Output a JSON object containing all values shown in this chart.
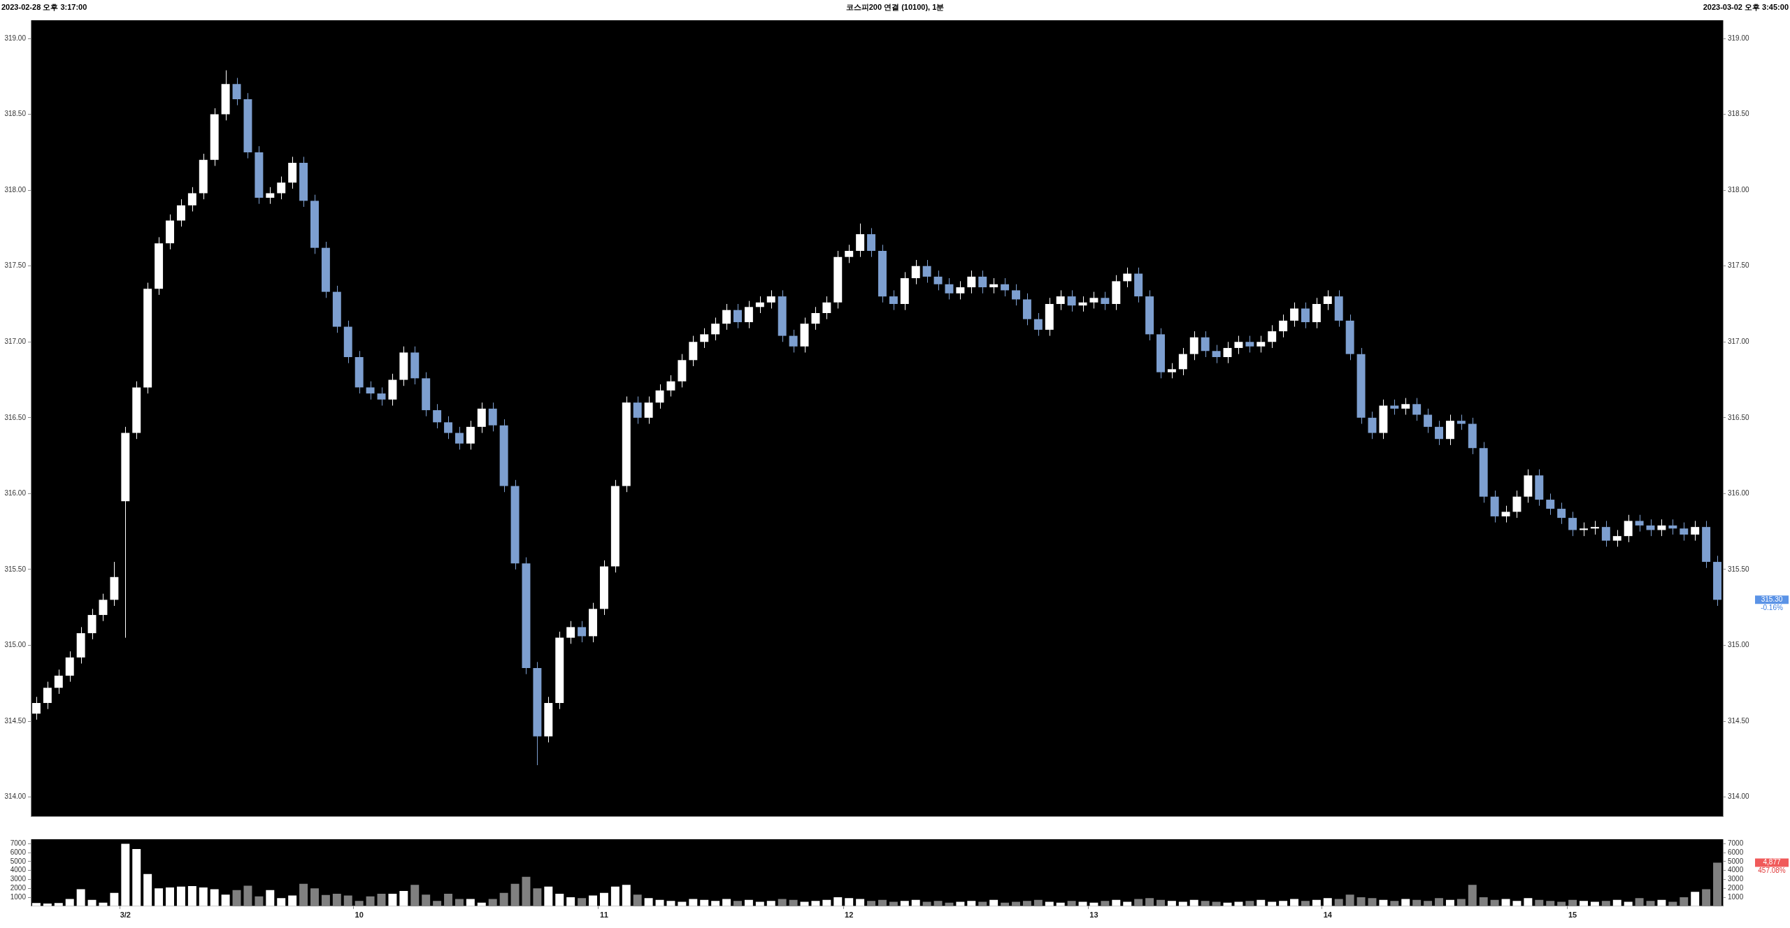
{
  "chart_data": [
    {
      "type": "candlestick",
      "title": "코스피200 연결 (10100), 1분",
      "annotations": [
        "2023-02-28 오후 3:17:00",
        "2023-03-02 오후 3:45:00",
        "315.30",
        "-0.16%"
      ],
      "ohlc": [
        [
          314.55,
          314.66,
          314.51,
          314.62
        ],
        [
          314.62,
          314.76,
          314.58,
          314.72
        ],
        [
          314.72,
          314.84,
          314.68,
          314.8
        ],
        [
          314.8,
          314.96,
          314.76,
          314.92
        ],
        [
          314.92,
          315.12,
          314.88,
          315.08
        ],
        [
          315.08,
          315.24,
          315.04,
          315.2
        ],
        [
          315.2,
          315.34,
          315.16,
          315.3
        ],
        [
          315.3,
          315.55,
          315.26,
          315.45
        ],
        [
          315.95,
          316.44,
          315.05,
          316.4
        ],
        [
          316.4,
          316.74,
          316.36,
          316.7
        ],
        [
          316.7,
          317.39,
          316.66,
          317.35
        ],
        [
          317.35,
          317.69,
          317.31,
          317.65
        ],
        [
          317.65,
          317.84,
          317.61,
          317.8
        ],
        [
          317.8,
          317.94,
          317.76,
          317.9
        ],
        [
          317.9,
          318.02,
          317.86,
          317.98
        ],
        [
          317.98,
          318.24,
          317.94,
          318.2
        ],
        [
          318.2,
          318.54,
          318.16,
          318.5
        ],
        [
          318.5,
          318.79,
          318.46,
          318.7
        ],
        [
          318.7,
          318.74,
          318.56,
          318.6
        ],
        [
          318.6,
          318.64,
          318.21,
          318.25
        ],
        [
          318.25,
          318.29,
          317.91,
          317.95
        ],
        [
          317.95,
          318.02,
          317.91,
          317.98
        ],
        [
          317.98,
          318.09,
          317.94,
          318.05
        ],
        [
          318.05,
          318.22,
          318.01,
          318.18
        ],
        [
          318.18,
          318.22,
          317.89,
          317.93
        ],
        [
          317.93,
          317.97,
          317.58,
          317.62
        ],
        [
          317.62,
          317.66,
          317.29,
          317.33
        ],
        [
          317.33,
          317.37,
          317.06,
          317.1
        ],
        [
          317.1,
          317.14,
          316.86,
          316.9
        ],
        [
          316.9,
          316.94,
          316.66,
          316.7
        ],
        [
          316.7,
          316.74,
          316.62,
          316.66
        ],
        [
          316.66,
          316.7,
          316.58,
          316.62
        ],
        [
          316.62,
          316.79,
          316.58,
          316.75
        ],
        [
          316.75,
          316.97,
          316.71,
          316.93
        ],
        [
          316.93,
          316.97,
          316.72,
          316.76
        ],
        [
          316.76,
          316.8,
          316.51,
          316.55
        ],
        [
          316.55,
          316.59,
          316.43,
          316.47
        ],
        [
          316.47,
          316.51,
          316.36,
          316.4
        ],
        [
          316.4,
          316.44,
          316.29,
          316.33
        ],
        [
          316.33,
          316.48,
          316.29,
          316.44
        ],
        [
          316.44,
          316.6,
          316.4,
          316.56
        ],
        [
          316.56,
          316.6,
          316.41,
          316.45
        ],
        [
          316.45,
          316.49,
          316.01,
          316.05
        ],
        [
          316.05,
          316.09,
          315.5,
          315.54
        ],
        [
          315.54,
          315.58,
          314.81,
          314.85
        ],
        [
          314.85,
          314.89,
          314.21,
          314.4
        ],
        [
          314.4,
          314.66,
          314.36,
          314.62
        ],
        [
          314.62,
          315.09,
          314.58,
          315.05
        ],
        [
          315.05,
          315.16,
          315.01,
          315.12
        ],
        [
          315.12,
          315.16,
          315.02,
          315.06
        ],
        [
          315.06,
          315.28,
          315.02,
          315.24
        ],
        [
          315.24,
          315.56,
          315.2,
          315.52
        ],
        [
          315.52,
          316.09,
          315.48,
          316.05
        ],
        [
          316.05,
          316.64,
          316.01,
          316.6
        ],
        [
          316.6,
          316.64,
          316.46,
          316.5
        ],
        [
          316.5,
          316.64,
          316.46,
          316.6
        ],
        [
          316.6,
          316.72,
          316.56,
          316.68
        ],
        [
          316.68,
          316.78,
          316.64,
          316.74
        ],
        [
          316.74,
          316.92,
          316.7,
          316.88
        ],
        [
          316.88,
          317.04,
          316.84,
          317.0
        ],
        [
          317.0,
          317.09,
          316.96,
          317.05
        ],
        [
          317.05,
          317.16,
          317.01,
          317.12
        ],
        [
          317.12,
          317.25,
          317.08,
          317.21
        ],
        [
          317.21,
          317.25,
          317.09,
          317.13
        ],
        [
          317.13,
          317.27,
          317.09,
          317.23
        ],
        [
          317.23,
          317.3,
          317.19,
          317.26
        ],
        [
          317.26,
          317.34,
          317.22,
          317.3
        ],
        [
          317.3,
          317.34,
          317.0,
          317.04
        ],
        [
          317.04,
          317.08,
          316.93,
          316.97
        ],
        [
          316.97,
          317.16,
          316.93,
          317.12
        ],
        [
          317.12,
          317.23,
          317.08,
          317.19
        ],
        [
          317.19,
          317.3,
          317.15,
          317.26
        ],
        [
          317.26,
          317.6,
          317.22,
          317.56
        ],
        [
          317.56,
          317.64,
          317.52,
          317.6
        ],
        [
          317.6,
          317.78,
          317.56,
          317.71
        ],
        [
          317.71,
          317.75,
          317.56,
          317.6
        ],
        [
          317.6,
          317.64,
          317.26,
          317.3
        ],
        [
          317.3,
          317.34,
          317.21,
          317.25
        ],
        [
          317.25,
          317.46,
          317.21,
          317.42
        ],
        [
          317.42,
          317.54,
          317.38,
          317.5
        ],
        [
          317.5,
          317.54,
          317.39,
          317.43
        ],
        [
          317.43,
          317.47,
          317.34,
          317.38
        ],
        [
          317.38,
          317.42,
          317.28,
          317.32
        ],
        [
          317.32,
          317.4,
          317.28,
          317.36
        ],
        [
          317.36,
          317.47,
          317.32,
          317.43
        ],
        [
          317.43,
          317.47,
          317.32,
          317.36
        ],
        [
          317.36,
          317.42,
          317.32,
          317.38
        ],
        [
          317.38,
          317.42,
          317.3,
          317.34
        ],
        [
          317.34,
          317.38,
          317.24,
          317.28
        ],
        [
          317.28,
          317.32,
          317.11,
          317.15
        ],
        [
          317.15,
          317.19,
          317.04,
          317.08
        ],
        [
          317.08,
          317.29,
          317.04,
          317.25
        ],
        [
          317.25,
          317.34,
          317.21,
          317.3
        ],
        [
          317.3,
          317.34,
          317.2,
          317.24
        ],
        [
          317.24,
          317.3,
          317.2,
          317.26
        ],
        [
          317.26,
          317.33,
          317.22,
          317.29
        ],
        [
          317.29,
          317.33,
          317.21,
          317.25
        ],
        [
          317.25,
          317.44,
          317.21,
          317.4
        ],
        [
          317.4,
          317.49,
          317.36,
          317.45
        ],
        [
          317.45,
          317.49,
          317.26,
          317.3
        ],
        [
          317.3,
          317.34,
          317.01,
          317.05
        ],
        [
          317.05,
          317.09,
          316.76,
          316.8
        ],
        [
          316.8,
          316.86,
          316.76,
          316.82
        ],
        [
          316.82,
          316.96,
          316.78,
          316.92
        ],
        [
          316.92,
          317.07,
          316.88,
          317.03
        ],
        [
          317.03,
          317.07,
          316.9,
          316.94
        ],
        [
          316.94,
          316.98,
          316.86,
          316.9
        ],
        [
          316.9,
          317.0,
          316.86,
          316.96
        ],
        [
          316.96,
          317.04,
          316.92,
          317.0
        ],
        [
          317.0,
          317.04,
          316.93,
          316.97
        ],
        [
          316.97,
          317.04,
          316.93,
          317.0
        ],
        [
          317.0,
          317.11,
          316.96,
          317.07
        ],
        [
          317.07,
          317.18,
          317.03,
          317.14
        ],
        [
          317.14,
          317.26,
          317.1,
          317.22
        ],
        [
          317.22,
          317.26,
          317.09,
          317.13
        ],
        [
          317.13,
          317.29,
          317.09,
          317.25
        ],
        [
          317.25,
          317.34,
          317.21,
          317.3
        ],
        [
          317.3,
          317.34,
          317.1,
          317.14
        ],
        [
          317.14,
          317.18,
          316.88,
          316.92
        ],
        [
          316.92,
          316.96,
          316.46,
          316.5
        ],
        [
          316.5,
          316.54,
          316.36,
          316.4
        ],
        [
          316.4,
          316.62,
          316.36,
          316.58
        ],
        [
          316.58,
          316.62,
          316.52,
          316.56
        ],
        [
          316.56,
          316.63,
          316.52,
          316.59
        ],
        [
          316.59,
          316.63,
          316.48,
          316.52
        ],
        [
          316.52,
          316.56,
          316.4,
          316.44
        ],
        [
          316.44,
          316.48,
          316.32,
          316.36
        ],
        [
          316.36,
          316.52,
          316.32,
          316.48
        ],
        [
          316.48,
          316.52,
          316.42,
          316.46
        ],
        [
          316.46,
          316.5,
          316.26,
          316.3
        ],
        [
          316.3,
          316.34,
          315.94,
          315.98
        ],
        [
          315.98,
          316.02,
          315.81,
          315.85
        ],
        [
          315.85,
          315.92,
          315.81,
          315.88
        ],
        [
          315.88,
          316.02,
          315.84,
          315.98
        ],
        [
          315.98,
          316.16,
          315.94,
          316.12
        ],
        [
          316.12,
          316.16,
          315.92,
          315.96
        ],
        [
          315.96,
          316.0,
          315.86,
          315.9
        ],
        [
          315.9,
          315.94,
          315.8,
          315.84
        ],
        [
          315.84,
          315.88,
          315.72,
          315.76
        ],
        [
          315.76,
          315.81,
          315.72,
          315.77
        ],
        [
          315.77,
          315.82,
          315.73,
          315.78
        ],
        [
          315.78,
          315.82,
          315.65,
          315.69
        ],
        [
          315.69,
          315.76,
          315.65,
          315.72
        ],
        [
          315.72,
          315.86,
          315.68,
          315.82
        ],
        [
          315.82,
          315.86,
          315.75,
          315.79
        ],
        [
          315.79,
          315.83,
          315.72,
          315.76
        ],
        [
          315.76,
          315.83,
          315.72,
          315.79
        ],
        [
          315.79,
          315.83,
          315.73,
          315.77
        ],
        [
          315.77,
          315.81,
          315.69,
          315.73
        ],
        [
          315.73,
          315.82,
          315.69,
          315.78
        ],
        [
          315.78,
          315.82,
          315.51,
          315.55
        ],
        [
          315.55,
          315.59,
          315.26,
          315.3
        ]
      ],
      "ylim": [
        313.87,
        319.12
      ],
      "yticks": [
        {
          "value": 314,
          "label": "314.00"
        },
        {
          "value": 314.5,
          "label": "314.50"
        },
        {
          "value": 315,
          "label": "315.00"
        },
        {
          "value": 315.5,
          "label": "315.50"
        },
        {
          "value": 316,
          "label": "316.00"
        },
        {
          "value": 316.5,
          "label": "316.50"
        },
        {
          "value": 317,
          "label": "317.00"
        },
        {
          "value": 317.5,
          "label": "317.50"
        },
        {
          "value": 318,
          "label": "318.00"
        },
        {
          "value": 318.5,
          "label": "318.50"
        },
        {
          "value": 319,
          "label": "319.00"
        }
      ],
      "y2lim": [
        313.87,
        319.12
      ],
      "y2ticks": [
        {
          "value": 314,
          "label": "314.00"
        },
        {
          "value": 314.5,
          "label": "314.50"
        },
        {
          "value": 315,
          "label": "315.00"
        },
        {
          "value": 315.5,
          "label": "315.50"
        },
        {
          "value": 316,
          "label": "316.00"
        },
        {
          "value": 316.5,
          "label": "316.50"
        },
        {
          "value": 317,
          "label": "317.00"
        },
        {
          "value": 317.5,
          "label": "317.50"
        },
        {
          "value": 318,
          "label": "318.00"
        },
        {
          "value": 318.5,
          "label": "318.50"
        },
        {
          "value": 319,
          "label": "319.00"
        }
      ],
      "grid": false,
      "legend": false
    },
    {
      "type": "bar",
      "annotations": [
        "4,877",
        "457.08%"
      ],
      "categories": [
        null,
        null,
        null,
        null,
        null,
        null,
        null,
        null,
        "3/2",
        null,
        null,
        null,
        null,
        null,
        null,
        null,
        null,
        null,
        null,
        null,
        null,
        null,
        null,
        null,
        null,
        null,
        null,
        null,
        null,
        "10",
        null,
        null,
        null,
        null,
        null,
        null,
        null,
        null,
        null,
        null,
        null,
        null,
        null,
        null,
        null,
        null,
        null,
        null,
        null,
        null,
        null,
        "11",
        null,
        null,
        null,
        null,
        null,
        null,
        null,
        null,
        null,
        null,
        null,
        null,
        null,
        null,
        null,
        null,
        null,
        null,
        null,
        null,
        null,
        "12",
        null,
        null,
        null,
        null,
        null,
        null,
        null,
        null,
        null,
        null,
        null,
        null,
        null,
        null,
        null,
        null,
        null,
        null,
        null,
        null,
        null,
        "13",
        null,
        null,
        null,
        null,
        null,
        null,
        null,
        null,
        null,
        null,
        null,
        null,
        null,
        null,
        null,
        null,
        null,
        null,
        null,
        null,
        "14",
        null,
        null,
        null,
        null,
        null,
        null,
        null,
        null,
        null,
        null,
        null,
        null,
        null,
        null,
        null,
        null,
        null,
        null,
        null,
        null,
        null,
        "15",
        null,
        null,
        null,
        null,
        null,
        null,
        null,
        null,
        null,
        null,
        null,
        null,
        null
      ],
      "values": [
        350,
        300,
        350,
        800,
        1900,
        700,
        400,
        1500,
        7000,
        6400,
        3600,
        2000,
        2100,
        2200,
        2250,
        2100,
        1900,
        1300,
        1800,
        2300,
        1100,
        1800,
        900,
        1200,
        2500,
        2000,
        1250,
        1400,
        1200,
        600,
        1100,
        1400,
        1400,
        1700,
        2400,
        1300,
        600,
        1400,
        800,
        800,
        400,
        800,
        1500,
        2500,
        3300,
        2000,
        2200,
        1400,
        1000,
        900,
        1200,
        1500,
        2200,
        2400,
        1300,
        900,
        700,
        600,
        500,
        800,
        700,
        600,
        800,
        600,
        700,
        500,
        600,
        800,
        700,
        500,
        600,
        700,
        1000,
        900,
        800,
        600,
        700,
        500,
        600,
        700,
        500,
        600,
        400,
        500,
        600,
        500,
        700,
        400,
        500,
        600,
        700,
        500,
        400,
        600,
        500,
        400,
        600,
        700,
        500,
        800,
        900,
        700,
        600,
        500,
        700,
        600,
        500,
        400,
        500,
        600,
        700,
        500,
        600,
        800,
        600,
        700,
        900,
        800,
        1300,
        1000,
        900,
        700,
        600,
        800,
        700,
        600,
        900,
        700,
        800,
        2400,
        1000,
        700,
        800,
        600,
        900,
        700,
        600,
        500,
        700,
        600,
        500,
        600,
        700,
        500,
        900,
        600,
        700,
        500,
        1000,
        1600,
        1900,
        4877
      ],
      "colors": [
        "#ffffff",
        "#ffffff",
        "#ffffff",
        "#ffffff",
        "#ffffff",
        "#ffffff",
        "#ffffff",
        "#ffffff",
        "#ffffff",
        "#ffffff",
        "#ffffff",
        "#ffffff",
        "#ffffff",
        "#ffffff",
        "#ffffff",
        "#ffffff",
        "#ffffff",
        "#ffffff",
        "#808080",
        "#808080",
        "#808080",
        "#ffffff",
        "#ffffff",
        "#ffffff",
        "#808080",
        "#808080",
        "#808080",
        "#808080",
        "#808080",
        "#808080",
        "#808080",
        "#808080",
        "#ffffff",
        "#ffffff",
        "#808080",
        "#808080",
        "#808080",
        "#808080",
        "#808080",
        "#ffffff",
        "#ffffff",
        "#808080",
        "#808080",
        "#808080",
        "#808080",
        "#808080",
        "#ffffff",
        "#ffffff",
        "#ffffff",
        "#808080",
        "#ffffff",
        "#ffffff",
        "#ffffff",
        "#ffffff",
        "#808080",
        "#ffffff",
        "#ffffff",
        "#ffffff",
        "#ffffff",
        "#ffffff",
        "#ffffff",
        "#ffffff",
        "#ffffff",
        "#808080",
        "#ffffff",
        "#ffffff",
        "#ffffff",
        "#808080",
        "#808080",
        "#ffffff",
        "#ffffff",
        "#ffffff",
        "#ffffff",
        "#ffffff",
        "#ffffff",
        "#808080",
        "#808080",
        "#808080",
        "#ffffff",
        "#ffffff",
        "#808080",
        "#808080",
        "#808080",
        "#ffffff",
        "#ffffff",
        "#808080",
        "#ffffff",
        "#808080",
        "#808080",
        "#808080",
        "#808080",
        "#ffffff",
        "#ffffff",
        "#808080",
        "#ffffff",
        "#ffffff",
        "#808080",
        "#ffffff",
        "#ffffff",
        "#808080",
        "#808080",
        "#808080",
        "#ffffff",
        "#ffffff",
        "#ffffff",
        "#808080",
        "#808080",
        "#ffffff",
        "#ffffff",
        "#808080",
        "#ffffff",
        "#ffffff",
        "#ffffff",
        "#ffffff",
        "#808080",
        "#ffffff",
        "#ffffff",
        "#808080",
        "#808080",
        "#808080",
        "#808080",
        "#ffffff",
        "#808080",
        "#ffffff",
        "#808080",
        "#808080",
        "#808080",
        "#ffffff",
        "#808080",
        "#808080",
        "#808080",
        "#808080",
        "#ffffff",
        "#ffffff",
        "#ffffff",
        "#808080",
        "#808080",
        "#808080",
        "#808080",
        "#ffffff",
        "#ffffff",
        "#808080",
        "#ffffff",
        "#ffffff",
        "#808080",
        "#808080",
        "#ffffff",
        "#808080",
        "#808080",
        "#ffffff",
        "#808080",
        "#808080"
      ],
      "ylim": [
        0,
        7500
      ],
      "yticks": [
        1000,
        2000,
        3000,
        4000,
        5000,
        6000,
        7000
      ],
      "y2lim": [
        0,
        7500
      ],
      "y2ticks": [
        1000,
        2000,
        3000,
        4000,
        5000,
        6000,
        7000
      ],
      "grid": false,
      "legend": false
    }
  ]
}
